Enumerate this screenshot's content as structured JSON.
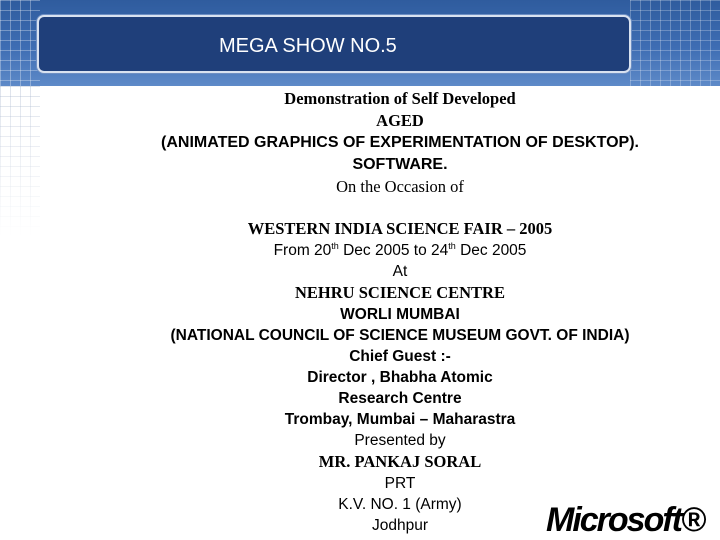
{
  "slide": {
    "title": "MEGA SHOW NO.5",
    "lines": {
      "demo": "Demonstration of Self Developed",
      "aged": "AGED",
      "aged_full": "(ANIMATED GRAPHICS OF EXPERIMENTATION OF DESKTOP).",
      "software": "SOFTWARE.",
      "occasion": "On the Occasion of",
      "fair": "WESTERN INDIA SCIENCE FAIR – 2005",
      "date_from_prefix": "From 20",
      "date_from_sup": "th",
      "date_mid": " Dec 2005 to 24",
      "date_to_sup": "th",
      "date_suffix": " Dec 2005",
      "at": "At",
      "venue": "NEHRU SCIENCE CENTRE",
      "city": "WORLI MUMBAI",
      "council": "(NATIONAL COUNCIL OF SCIENCE MUSEUM GOVT. OF INDIA)",
      "chief_guest": "Chief Guest :-",
      "director": "Director , Bhabha Atomic",
      "research": "Research Centre",
      "trombay": "Trombay, Mumbai – Maharastra",
      "presented_by": "Presented by",
      "presenter": "MR. PANKAJ SORAL",
      "designation": "PRT",
      "school": "K.V. NO. 1 (Army)",
      "place": "Jodhpur"
    },
    "logo_text": "Microsoft®"
  },
  "colors": {
    "header_blue": "#3e6db3",
    "title_box": "#1f3f7a",
    "text": "#000000"
  }
}
